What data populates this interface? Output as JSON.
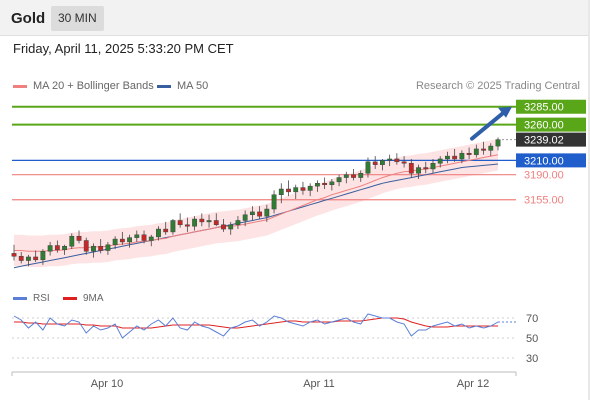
{
  "header": {
    "instrument": "Gold",
    "timeframe": "30 MIN"
  },
  "datetime": "Friday, April 11, 2025 5:33:20 PM CET",
  "legend": {
    "ma20_label": "MA 20 + Bollinger Bands",
    "ma50_label": "MA 50",
    "ma20_color": "#f08080",
    "ma50_color": "#3a5fa0"
  },
  "copyright": "Research © 2025 Trading Central",
  "rsi_legend": {
    "rsi_label": "RSI",
    "ma9_label": "9MA",
    "rsi_color": "#5b7fd6",
    "ma9_color": "#e02020"
  },
  "colors": {
    "resistance": "#5aa619",
    "pivot": "#1f5ecb",
    "support": "#f08080",
    "current": "#333333",
    "candle_up": "#2e7d32",
    "candle_down": "#c62828",
    "band_fill": "#fde0e0",
    "arrow": "#2e5fa8"
  },
  "chart_data": [
    {
      "type": "candlestick",
      "x_axis_labels": [
        "Apr 10",
        "Apr 11",
        "Apr 12"
      ],
      "ylim": [
        3040,
        3300
      ],
      "levels": [
        {
          "value": 3285.0,
          "label": "3285.00",
          "kind": "resistance"
        },
        {
          "value": 3260.0,
          "label": "3260.00",
          "kind": "resistance"
        },
        {
          "value": 3239.02,
          "label": "3239.02",
          "kind": "current"
        },
        {
          "value": 3210.0,
          "label": "3210.00",
          "kind": "pivot"
        },
        {
          "value": 3190.0,
          "label": "3190.00",
          "kind": "support"
        },
        {
          "value": 3155.0,
          "label": "3155.00",
          "kind": "support"
        }
      ],
      "candles": [
        [
          3080,
          3092,
          3070,
          3076
        ],
        [
          3076,
          3082,
          3066,
          3070
        ],
        [
          3070,
          3078,
          3062,
          3075
        ],
        [
          3075,
          3084,
          3068,
          3071
        ],
        [
          3071,
          3086,
          3064,
          3083
        ],
        [
          3083,
          3096,
          3077,
          3091
        ],
        [
          3091,
          3098,
          3081,
          3085
        ],
        [
          3085,
          3092,
          3078,
          3090
        ],
        [
          3090,
          3108,
          3086,
          3104
        ],
        [
          3104,
          3112,
          3094,
          3098
        ],
        [
          3098,
          3102,
          3078,
          3083
        ],
        [
          3083,
          3094,
          3074,
          3090
        ],
        [
          3090,
          3100,
          3080,
          3084
        ],
        [
          3084,
          3096,
          3078,
          3092
        ],
        [
          3092,
          3104,
          3086,
          3100
        ],
        [
          3100,
          3110,
          3092,
          3096
        ],
        [
          3096,
          3106,
          3088,
          3102
        ],
        [
          3102,
          3112,
          3096,
          3106
        ],
        [
          3106,
          3112,
          3094,
          3098
        ],
        [
          3098,
          3106,
          3090,
          3103
        ],
        [
          3103,
          3118,
          3098,
          3114
        ],
        [
          3114,
          3124,
          3106,
          3110
        ],
        [
          3110,
          3128,
          3106,
          3126
        ],
        [
          3126,
          3136,
          3116,
          3120
        ],
        [
          3120,
          3130,
          3110,
          3118
        ],
        [
          3118,
          3132,
          3112,
          3128
        ],
        [
          3128,
          3136,
          3118,
          3124
        ],
        [
          3124,
          3134,
          3116,
          3126
        ],
        [
          3126,
          3136,
          3118,
          3120
        ],
        [
          3120,
          3128,
          3110,
          3114
        ],
        [
          3114,
          3124,
          3106,
          3120
        ],
        [
          3120,
          3132,
          3114,
          3126
        ],
        [
          3126,
          3140,
          3118,
          3134
        ],
        [
          3134,
          3146,
          3126,
          3138
        ],
        [
          3138,
          3146,
          3128,
          3132
        ],
        [
          3132,
          3148,
          3124,
          3142
        ],
        [
          3142,
          3168,
          3136,
          3162
        ],
        [
          3162,
          3178,
          3150,
          3170
        ],
        [
          3170,
          3182,
          3160,
          3166
        ],
        [
          3166,
          3176,
          3156,
          3172
        ],
        [
          3172,
          3180,
          3162,
          3168
        ],
        [
          3168,
          3178,
          3160,
          3174
        ],
        [
          3174,
          3182,
          3166,
          3178
        ],
        [
          3178,
          3186,
          3170,
          3176
        ],
        [
          3176,
          3184,
          3168,
          3180
        ],
        [
          3180,
          3190,
          3174,
          3186
        ],
        [
          3186,
          3194,
          3178,
          3190
        ],
        [
          3190,
          3198,
          3182,
          3186
        ],
        [
          3186,
          3196,
          3180,
          3192
        ],
        [
          3192,
          3214,
          3186,
          3208
        ],
        [
          3208,
          3216,
          3198,
          3204
        ],
        [
          3204,
          3212,
          3196,
          3210
        ],
        [
          3210,
          3218,
          3202,
          3212
        ],
        [
          3212,
          3220,
          3204,
          3208
        ],
        [
          3208,
          3216,
          3200,
          3206
        ],
        [
          3206,
          3212,
          3186,
          3192
        ],
        [
          3192,
          3204,
          3184,
          3200
        ],
        [
          3200,
          3208,
          3192,
          3198
        ],
        [
          3198,
          3212,
          3192,
          3206
        ],
        [
          3206,
          3216,
          3200,
          3212
        ],
        [
          3212,
          3222,
          3206,
          3216
        ],
        [
          3216,
          3226,
          3208,
          3212
        ],
        [
          3212,
          3224,
          3206,
          3220
        ],
        [
          3220,
          3228,
          3212,
          3218
        ],
        [
          3218,
          3232,
          3214,
          3226
        ],
        [
          3226,
          3236,
          3218,
          3224
        ],
        [
          3224,
          3234,
          3216,
          3230
        ],
        [
          3230,
          3242,
          3224,
          3239
        ]
      ],
      "ma20": [
        3084,
        3084,
        3083,
        3083,
        3083,
        3084,
        3084,
        3085,
        3087,
        3088,
        3088,
        3089,
        3089,
        3090,
        3092,
        3093,
        3094,
        3096,
        3097,
        3098,
        3100,
        3101,
        3104,
        3106,
        3108,
        3110,
        3112,
        3114,
        3116,
        3117,
        3118,
        3119,
        3121,
        3123,
        3125,
        3127,
        3131,
        3135,
        3139,
        3143,
        3147,
        3151,
        3155,
        3158,
        3162,
        3165,
        3168,
        3171,
        3174,
        3178,
        3182,
        3186,
        3189,
        3192,
        3194,
        3195,
        3197,
        3198,
        3200,
        3202,
        3204,
        3206,
        3208,
        3210,
        3212,
        3214,
        3216,
        3218
      ],
      "ma50": [
        3060,
        3062,
        3064,
        3066,
        3068,
        3070,
        3072,
        3074,
        3076,
        3078,
        3080,
        3082,
        3084,
        3086,
        3088,
        3090,
        3092,
        3094,
        3096,
        3098,
        3100,
        3102,
        3104,
        3106,
        3108,
        3110,
        3112,
        3114,
        3116,
        3118,
        3120,
        3122,
        3124,
        3126,
        3128,
        3130,
        3133,
        3136,
        3139,
        3142,
        3145,
        3148,
        3151,
        3154,
        3157,
        3160,
        3163,
        3166,
        3169,
        3172,
        3175,
        3178,
        3180,
        3182,
        3184,
        3186,
        3188,
        3190,
        3192,
        3194,
        3196,
        3198,
        3200,
        3201,
        3202,
        3203,
        3204,
        3205
      ],
      "bb_upper_offset": 22,
      "bb_lower_offset": 22,
      "projection": {
        "from": 3239.02,
        "to": 3285.0
      }
    },
    {
      "type": "line",
      "title": "RSI",
      "ylim": [
        20,
        80
      ],
      "yticks": [
        70,
        50,
        30
      ],
      "series": [
        {
          "name": "RSI",
          "values": [
            72,
            68,
            60,
            66,
            58,
            70,
            64,
            62,
            68,
            66,
            55,
            62,
            58,
            60,
            64,
            50,
            56,
            62,
            58,
            64,
            68,
            62,
            70,
            60,
            58,
            66,
            62,
            60,
            56,
            52,
            60,
            62,
            66,
            68,
            62,
            66,
            72,
            70,
            66,
            64,
            62,
            66,
            68,
            64,
            66,
            68,
            70,
            66,
            64,
            74,
            72,
            70,
            70,
            66,
            64,
            52,
            58,
            58,
            62,
            64,
            66,
            62,
            64,
            60,
            62,
            60,
            62,
            66
          ]
        },
        {
          "name": "9MA",
          "values": [
            66,
            66,
            65,
            65,
            64,
            64,
            64,
            64,
            64,
            64,
            63,
            63,
            62,
            62,
            62,
            60,
            60,
            60,
            60,
            60,
            61,
            62,
            63,
            63,
            63,
            63,
            63,
            63,
            62,
            61,
            60,
            60,
            61,
            62,
            63,
            64,
            65,
            66,
            67,
            67,
            66,
            66,
            66,
            66,
            66,
            67,
            67,
            67,
            67,
            68,
            69,
            70,
            70,
            70,
            69,
            66,
            64,
            62,
            61,
            61,
            61,
            62,
            62,
            62,
            62,
            62,
            62,
            62
          ]
        }
      ]
    }
  ]
}
